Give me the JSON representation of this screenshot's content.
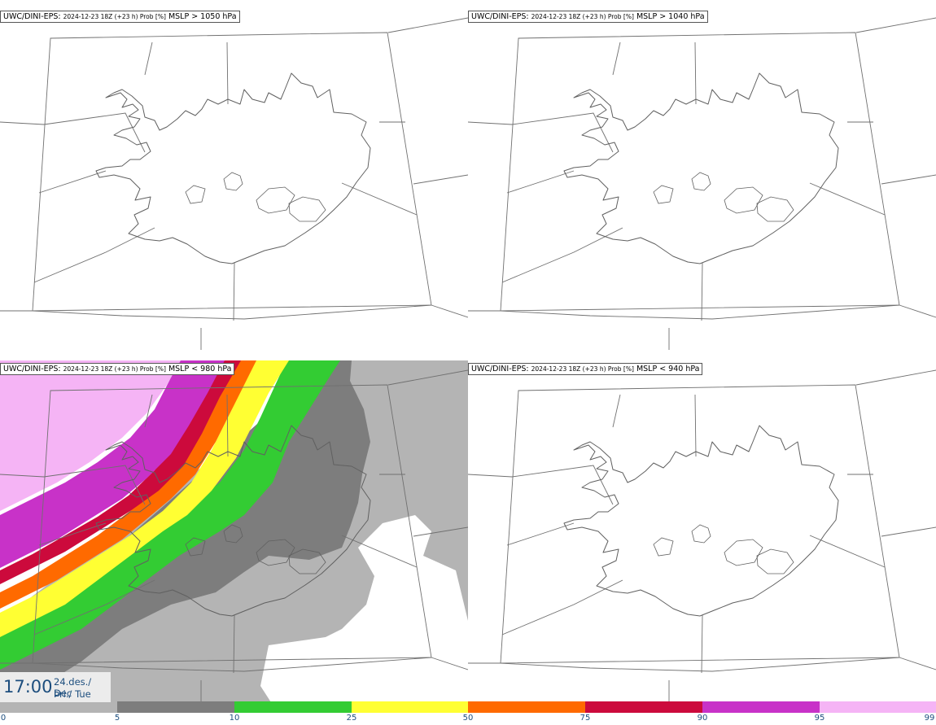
{
  "panels": [
    {
      "source": "UWC/DINI-EPS",
      "meta": "2024-12-23 18Z (+23 h) Prob [%]",
      "variable": "MSLP > 1050 hPa"
    },
    {
      "source": "UWC/DINI-EPS",
      "meta": "2024-12-23 18Z (+23 h) Prob [%]",
      "variable": "MSLP > 1040 hPa"
    },
    {
      "source": "UWC/DINI-EPS",
      "meta": "2024-12-23 18Z (+23 h) Prob [%]",
      "variable": "MSLP < 980 hPa"
    },
    {
      "source": "UWC/DINI-EPS",
      "meta": "2024-12-23 18Z (+23 h) Prob [%]",
      "variable": "MSLP < 940 hPa"
    }
  ],
  "valid_time": {
    "clock": "17:00",
    "date_line1": "24.des./ Dec",
    "date_line2": "Þri./ Tue"
  },
  "legend": {
    "ticks": [
      "0",
      "5",
      "10",
      "25",
      "50",
      "75",
      "90",
      "95",
      "99"
    ],
    "colors": [
      "#ffffff",
      "#b4b4b4",
      "#7d7d7d",
      "#33cc33",
      "#ffff33",
      "#ff6a00",
      "#cc0a3c",
      "#c832c8",
      "#f5b4f5"
    ]
  },
  "colors": {
    "coast": "#606060",
    "grid": "#707070",
    "prob_5": "#b4b4b4",
    "prob_10": "#7d7d7d",
    "prob_25": "#33cc33",
    "prob_50": "#ffff33",
    "prob_75": "#ff6a00",
    "prob_90": "#cc0a3c",
    "prob_95": "#c832c8",
    "prob_99": "#f5b4f5"
  }
}
